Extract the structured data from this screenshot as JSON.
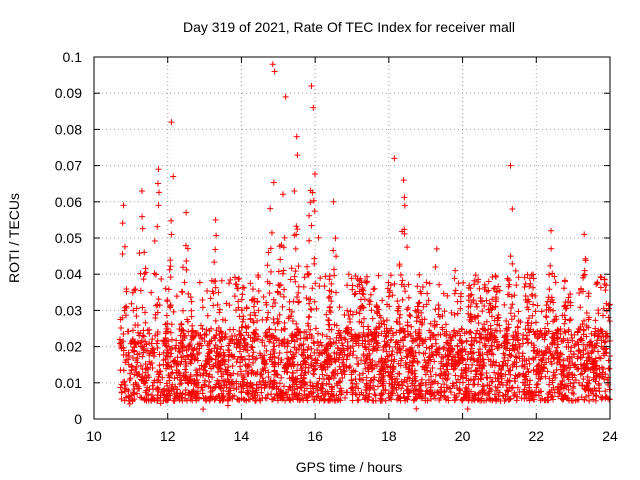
{
  "chart_data": {
    "type": "scatter",
    "title": "Day 319 of 2021, Rate Of TEC Index for receiver mall",
    "xlabel": "GPS time / hours",
    "ylabel": "ROTI / TECUs",
    "xlim": [
      10,
      24
    ],
    "ylim": [
      0,
      0.1
    ],
    "x_ticks": [
      10,
      12,
      14,
      16,
      18,
      20,
      22,
      24
    ],
    "x_tick_labels": [
      "10",
      "12",
      "14",
      "16",
      "18",
      "20",
      "22",
      "24"
    ],
    "y_ticks": [
      0,
      0.01,
      0.02,
      0.03,
      0.04,
      0.05,
      0.06,
      0.07,
      0.08,
      0.09,
      0.1
    ],
    "y_tick_labels": [
      "0",
      "0.01",
      "0.02",
      "0.03",
      "0.04",
      "0.05",
      "0.06",
      "0.07",
      "0.08",
      "0.09",
      "0.1"
    ],
    "grid": true,
    "marker": "+",
    "series": [
      {
        "name": "ROTI",
        "color": "#ff0000",
        "x_range": [
          10.7,
          24.0
        ],
        "typical_band": [
          0.005,
          0.025
        ],
        "notable_peaks": [
          {
            "x": 10.8,
            "y": 0.059
          },
          {
            "x": 11.3,
            "y": 0.063
          },
          {
            "x": 11.75,
            "y": 0.069
          },
          {
            "x": 12.1,
            "y": 0.082
          },
          {
            "x": 12.15,
            "y": 0.067
          },
          {
            "x": 12.5,
            "y": 0.057
          },
          {
            "x": 13.3,
            "y": 0.055
          },
          {
            "x": 14.85,
            "y": 0.098
          },
          {
            "x": 14.9,
            "y": 0.096
          },
          {
            "x": 15.2,
            "y": 0.089
          },
          {
            "x": 15.5,
            "y": 0.078
          },
          {
            "x": 15.9,
            "y": 0.092
          },
          {
            "x": 15.95,
            "y": 0.086
          },
          {
            "x": 16.5,
            "y": 0.06
          },
          {
            "x": 18.15,
            "y": 0.072
          },
          {
            "x": 18.4,
            "y": 0.066
          },
          {
            "x": 19.3,
            "y": 0.047
          },
          {
            "x": 19.8,
            "y": 0.041
          },
          {
            "x": 21.3,
            "y": 0.07
          },
          {
            "x": 21.35,
            "y": 0.058
          },
          {
            "x": 22.4,
            "y": 0.052
          },
          {
            "x": 23.3,
            "y": 0.051
          }
        ]
      }
    ]
  }
}
